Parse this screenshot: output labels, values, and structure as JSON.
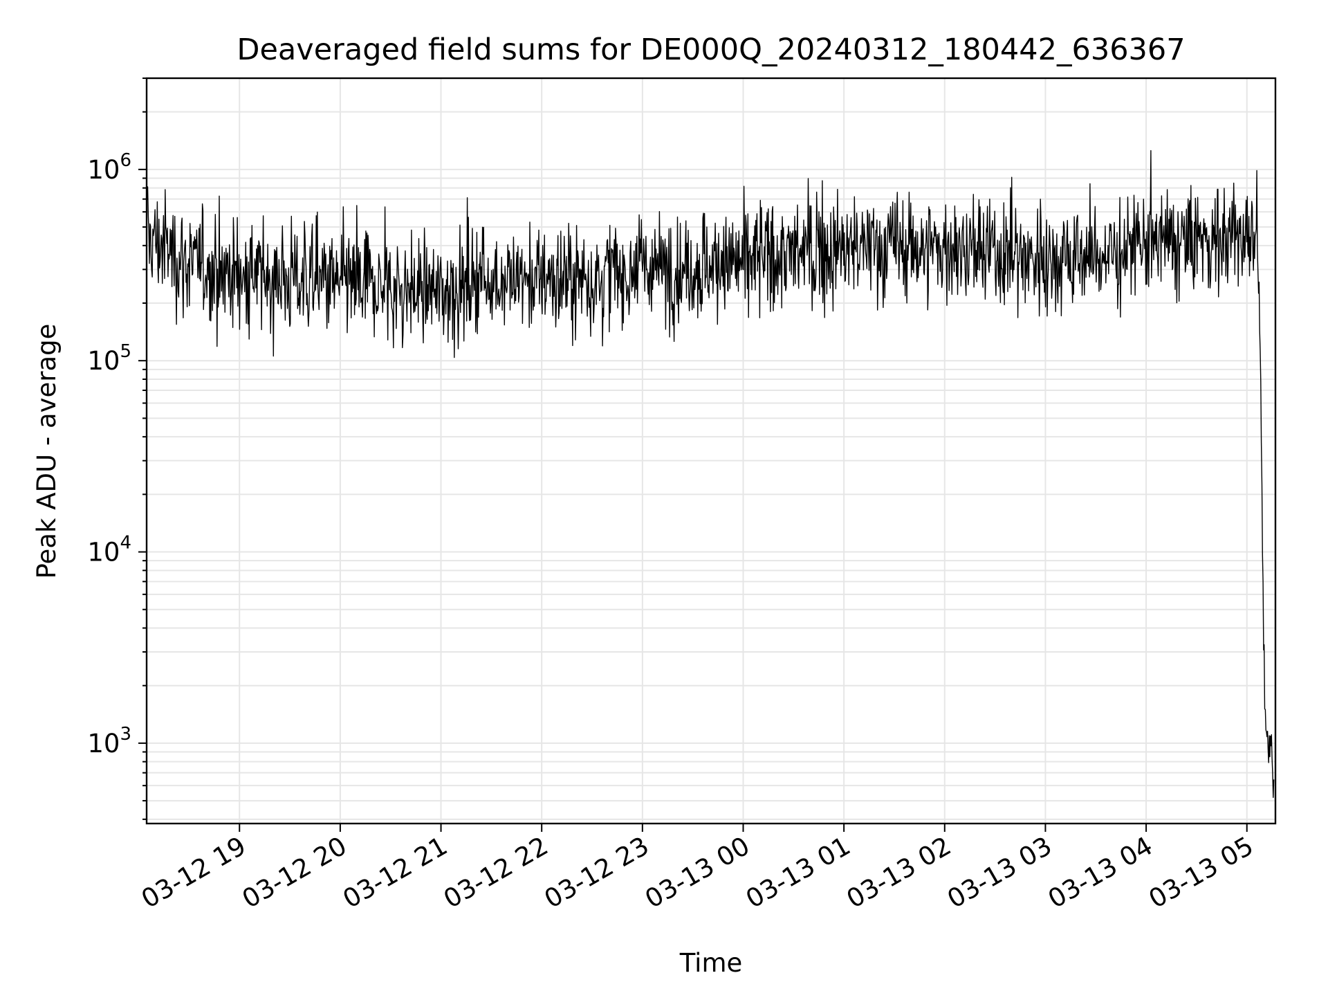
{
  "chart_data": {
    "type": "line",
    "title": "Deaveraged field sums for DE000Q_20240312_180442_636367",
    "xlabel": "Time",
    "ylabel": "Peak ADU - average",
    "yscale": "log",
    "ylim": [
      380,
      3000000
    ],
    "xlim": [
      "2024-03-12 18:04:42",
      "2024-03-13 05:17:00"
    ],
    "grid": true,
    "legend": "none",
    "colors": {
      "line": "#000000",
      "grid": "#e6e6e6",
      "axes": "#000000"
    },
    "x_ticks": [
      "03-12 19",
      "03-12 20",
      "03-12 21",
      "03-12 22",
      "03-12 23",
      "03-13 00",
      "03-13 01",
      "03-13 02",
      "03-13 03",
      "03-13 04",
      "03-13 05"
    ],
    "y_ticks": [
      {
        "value": 1000,
        "base": "10",
        "exp": "3"
      },
      {
        "value": 10000,
        "base": "10",
        "exp": "4"
      },
      {
        "value": 100000,
        "base": "10",
        "exp": "5"
      },
      {
        "value": 1000000,
        "base": "10",
        "exp": "6"
      }
    ],
    "series": [
      {
        "noise_note": "dense noisy signal, approx. 2000 samples",
        "x": [
          "2024-03-12 18:05",
          "2024-03-12 18:30",
          "2024-03-12 19:00",
          "2024-03-12 19:30",
          "2024-03-12 20:00",
          "2024-03-12 20:30",
          "2024-03-12 21:00",
          "2024-03-12 21:30",
          "2024-03-12 22:00",
          "2024-03-12 22:30",
          "2024-03-12 23:00",
          "2024-03-12 23:30",
          "2024-03-13 00:00",
          "2024-03-13 00:30",
          "2024-03-13 01:00",
          "2024-03-13 01:30",
          "2024-03-13 02:00",
          "2024-03-13 02:30",
          "2024-03-13 03:00",
          "2024-03-13 03:30",
          "2024-03-13 04:00",
          "2024-03-13 04:30",
          "2024-03-13 05:00",
          "2024-03-13 05:06",
          "2024-03-13 05:08",
          "2024-03-13 05:10",
          "2024-03-13 05:12",
          "2024-03-13 05:14",
          "2024-03-13 05:16"
        ],
        "y": [
          450000,
          320000,
          280000,
          270000,
          250000,
          240000,
          230000,
          270000,
          260000,
          270000,
          300000,
          310000,
          330000,
          360000,
          380000,
          400000,
          380000,
          360000,
          340000,
          350000,
          400000,
          420000,
          450000,
          500000,
          120000,
          3000,
          800,
          1000,
          600
        ]
      }
    ]
  }
}
